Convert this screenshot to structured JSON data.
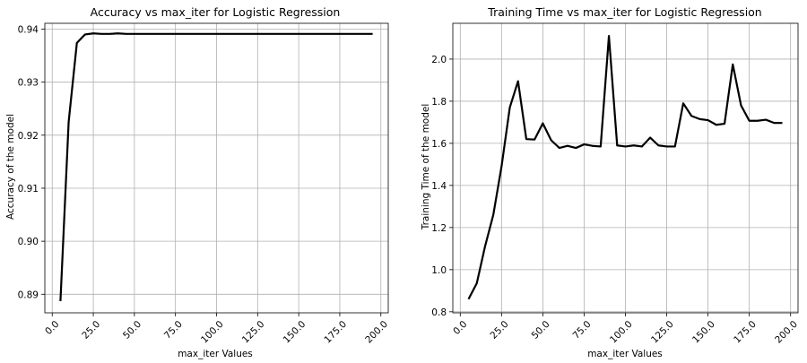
{
  "chart_data": [
    {
      "type": "line",
      "title": "Accuracy vs max_iter for Logistic Regression",
      "xlabel": "max_iter Values",
      "ylabel": "Accuracy of the model",
      "xlim": [
        -4.5,
        204.5
      ],
      "ylim": [
        0.8865,
        0.9411
      ],
      "xticks": [
        0,
        25,
        50,
        75,
        100,
        125,
        150,
        175,
        200
      ],
      "xtick_labels": [
        "0.0",
        "25.0",
        "50.0",
        "75.0",
        "100.0",
        "125.0",
        "150.0",
        "175.0",
        "200.0"
      ],
      "yticks": [
        0.89,
        0.9,
        0.91,
        0.92,
        0.93,
        0.94
      ],
      "ytick_labels": [
        "0.89",
        "0.90",
        "0.91",
        "0.92",
        "0.93",
        "0.94"
      ],
      "grid": true,
      "line_color": "#000000",
      "series": [
        {
          "x": [
            5,
            10,
            15,
            20,
            25,
            30,
            35,
            40,
            45,
            50,
            55,
            60,
            65,
            70,
            75,
            80,
            85,
            90,
            95,
            100,
            105,
            110,
            115,
            120,
            125,
            130,
            135,
            140,
            145,
            150,
            155,
            160,
            165,
            170,
            175,
            180,
            185,
            190,
            195
          ],
          "values": [
            0.8887,
            0.9225,
            0.9374,
            0.939,
            0.9392,
            0.9391,
            0.9391,
            0.9392,
            0.9391,
            0.9391,
            0.9391,
            0.9391,
            0.9391,
            0.9391,
            0.9391,
            0.9391,
            0.9391,
            0.9391,
            0.9391,
            0.9391,
            0.9391,
            0.9391,
            0.9391,
            0.9391,
            0.9391,
            0.9391,
            0.9391,
            0.9391,
            0.9391,
            0.9391,
            0.9391,
            0.9391,
            0.9391,
            0.9391,
            0.9391,
            0.9391,
            0.9391,
            0.9391,
            0.9391
          ]
        }
      ]
    },
    {
      "type": "line",
      "title": "Training Time vs max_iter for Logistic Regression",
      "xlabel": "max_iter Values",
      "ylabel": "Training Time of the model",
      "xlim": [
        -4.5,
        204.5
      ],
      "ylim": [
        0.795,
        2.17
      ],
      "xticks": [
        0,
        25,
        50,
        75,
        100,
        125,
        150,
        175,
        200
      ],
      "xtick_labels": [
        "0.0",
        "25.0",
        "50.0",
        "75.0",
        "100.0",
        "125.0",
        "150.0",
        "175.0",
        "200.0"
      ],
      "yticks": [
        0.8,
        1.0,
        1.2,
        1.4,
        1.6,
        1.8,
        2.0
      ],
      "ytick_labels": [
        "0.8",
        "1.0",
        "1.2",
        "1.4",
        "1.6",
        "1.8",
        "2.0"
      ],
      "grid": true,
      "line_color": "#000000",
      "series": [
        {
          "x": [
            5,
            10,
            15,
            20,
            25,
            30,
            35,
            40,
            45,
            50,
            55,
            60,
            65,
            70,
            75,
            80,
            85,
            90,
            95,
            100,
            105,
            110,
            115,
            120,
            125,
            130,
            135,
            140,
            145,
            150,
            155,
            160,
            165,
            170,
            175,
            180,
            185,
            190,
            195
          ],
          "values": [
            0.86,
            0.935,
            1.11,
            1.26,
            1.49,
            1.77,
            1.895,
            1.62,
            1.618,
            1.695,
            1.615,
            1.578,
            1.588,
            1.578,
            1.595,
            1.588,
            1.585,
            2.11,
            1.59,
            1.585,
            1.59,
            1.585,
            1.627,
            1.59,
            1.585,
            1.585,
            1.79,
            1.73,
            1.715,
            1.71,
            1.688,
            1.693,
            1.975,
            1.78,
            1.707,
            1.707,
            1.712,
            1.697,
            1.697
          ]
        }
      ]
    }
  ]
}
